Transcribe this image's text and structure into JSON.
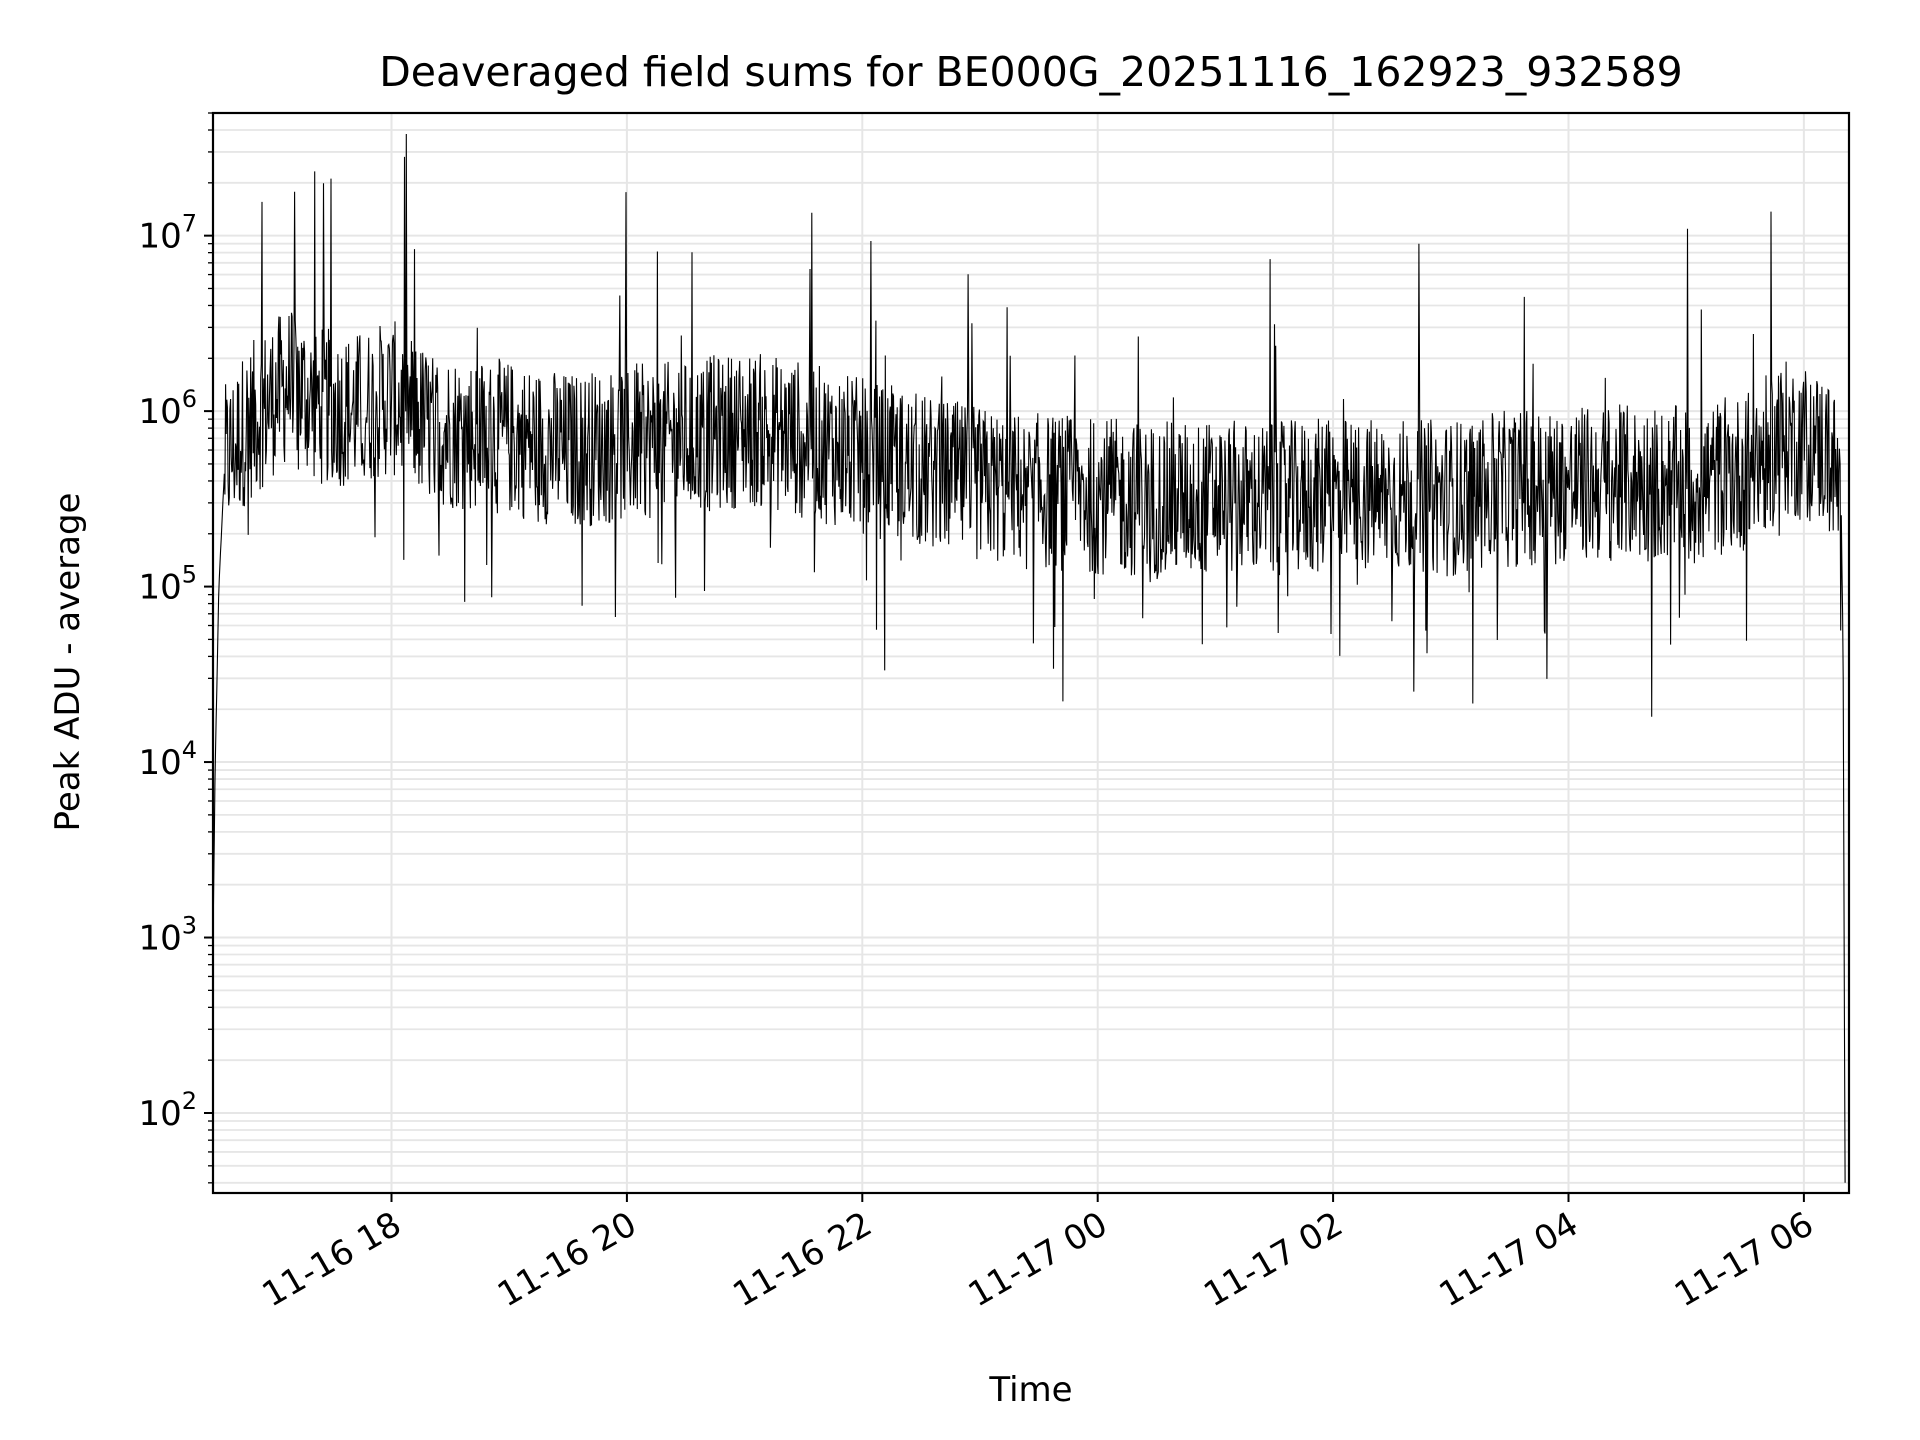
{
  "chart_data": {
    "type": "line",
    "title": "Deaveraged field sums for BE000G_20251116_162923_932589",
    "xlabel": "Time",
    "ylabel": "Peak ADU - average",
    "yscale": "log",
    "ylim": [
      35,
      50000000
    ],
    "xlim": [
      "2025-11-16 16:29",
      "2025-11-17 06:23"
    ],
    "grid": true,
    "line_color": "#000000",
    "grid_color": "#e6e6e6",
    "x_ticks": [
      {
        "label": "11-16 18",
        "time": "2025-11-16 18:00"
      },
      {
        "label": "11-16 20",
        "time": "2025-11-16 20:00"
      },
      {
        "label": "11-16 22",
        "time": "2025-11-16 22:00"
      },
      {
        "label": "11-17 00",
        "time": "2025-11-17 00:00"
      },
      {
        "label": "11-17 02",
        "time": "2025-11-17 02:00"
      },
      {
        "label": "11-17 04",
        "time": "2025-11-17 04:00"
      },
      {
        "label": "11-17 06",
        "time": "2025-11-17 06:00"
      }
    ],
    "y_ticks": [
      {
        "base": "10",
        "exp": "2",
        "value": 100
      },
      {
        "base": "10",
        "exp": "3",
        "value": 1000
      },
      {
        "base": "10",
        "exp": "4",
        "value": 10000
      },
      {
        "base": "10",
        "exp": "5",
        "value": 100000
      },
      {
        "base": "10",
        "exp": "6",
        "value": 1000000
      },
      {
        "base": "10",
        "exp": "7",
        "value": 10000000
      }
    ],
    "series": [
      {
        "x": [
          "2025-11-16 16:29",
          "2025-11-16 16:30",
          "2025-11-16 16:32",
          "2025-11-16 16:35",
          "2025-11-16 16:45",
          "2025-11-16 17:00",
          "2025-11-16 17:10",
          "2025-11-16 17:20",
          "2025-11-16 17:40",
          "2025-11-16 18:00",
          "2025-11-16 18:20",
          "2025-11-16 19:00",
          "2025-11-16 19:30",
          "2025-11-16 20:00",
          "2025-11-16 20:30",
          "2025-11-16 21:00",
          "2025-11-16 21:30",
          "2025-11-16 22:00",
          "2025-11-16 22:30",
          "2025-11-16 23:00",
          "2025-11-16 23:30",
          "2025-11-17 00:00",
          "2025-11-17 00:30",
          "2025-11-17 01:00",
          "2025-11-17 01:30",
          "2025-11-17 02:00",
          "2025-11-17 02:30",
          "2025-11-17 03:00",
          "2025-11-17 03:30",
          "2025-11-17 04:00",
          "2025-11-17 04:30",
          "2025-11-17 05:00",
          "2025-11-17 05:30",
          "2025-11-17 05:50",
          "2025-11-17 06:10",
          "2025-11-17 06:15",
          "2025-11-17 06:19",
          "2025-11-17 06:20",
          "2025-11-17 06:21"
        ],
        "y": [
          900,
          8000,
          100000,
          500000,
          800000,
          1200000,
          1500000,
          1100000,
          1000000,
          1200000,
          800000,
          700000,
          600000,
          650000,
          700000,
          800000,
          700000,
          550000,
          450000,
          380000,
          350000,
          330000,
          310000,
          320000,
          310000,
          330000,
          330000,
          320000,
          360000,
          380000,
          390000,
          380000,
          450000,
          700000,
          600000,
          500000,
          300000,
          40000,
          40
        ]
      }
    ]
  }
}
